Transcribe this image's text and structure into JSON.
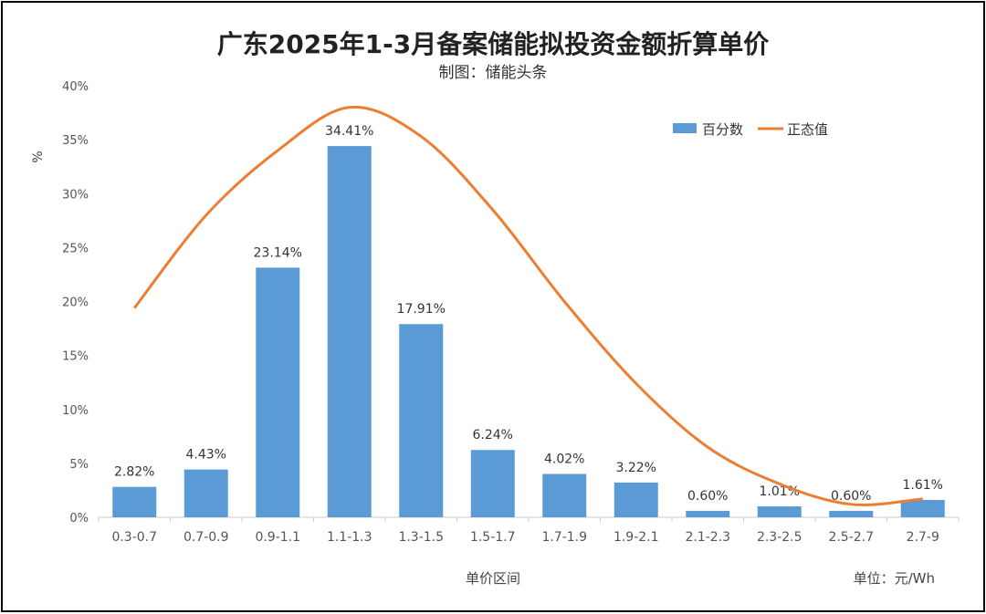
{
  "chart_data": {
    "type": "bar",
    "title": "广东2025年1-3月备案储能拟投资金额折算单价",
    "subtitle": "制图：储能头条",
    "xlabel": "单价区间",
    "ylabel": "%",
    "unit_note": "单位：元/Wh",
    "ylim": [
      0,
      40
    ],
    "yticks": [
      "0%",
      "5%",
      "10%",
      "15%",
      "20%",
      "25%",
      "30%",
      "35%",
      "40%"
    ],
    "categories": [
      "0.3-0.7",
      "0.7-0.9",
      "0.9-1.1",
      "1.1-1.3",
      "1.3-1.5",
      "1.5-1.7",
      "1.7-1.9",
      "1.9-2.1",
      "2.1-2.3",
      "2.3-2.5",
      "2.5-2.7",
      "2.7-9"
    ],
    "series": [
      {
        "name": "百分数",
        "type": "bar",
        "color": "#5b9bd5",
        "values": [
          2.82,
          4.43,
          23.14,
          34.41,
          17.91,
          6.24,
          4.02,
          3.22,
          0.6,
          1.01,
          0.6,
          1.61
        ],
        "labels": [
          "2.82%",
          "4.43%",
          "23.14%",
          "34.41%",
          "17.91%",
          "6.24%",
          "4.02%",
          "3.22%",
          "0.60%",
          "1.01%",
          "0.60%",
          "1.61%"
        ]
      },
      {
        "name": "正态值",
        "type": "line",
        "color": "#ed7d31",
        "values": [
          19.4,
          28,
          34,
          38,
          35.3,
          28.5,
          20,
          12.4,
          6.5,
          3.1,
          1.2,
          1.7
        ]
      }
    ],
    "legend": "top-right",
    "grid": false
  }
}
